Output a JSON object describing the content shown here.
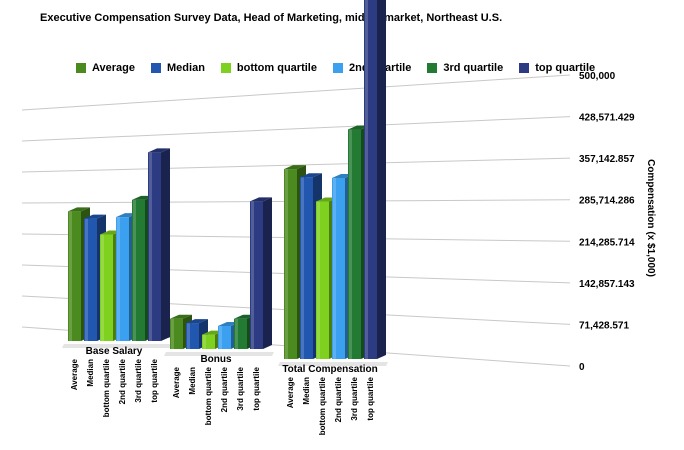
{
  "chart_data": {
    "type": "bar",
    "title": "Executive Compensation Survey Data, Head of Marketing, middle-market, Northeast U.S.",
    "ylabel": "Compensation (x $1,000)",
    "ylim": [
      0,
      500000
    ],
    "y_ticks": [
      "0",
      "71,428.571",
      "142,857.143",
      "214,285.714",
      "285,714.286",
      "357,142.857",
      "428,571.429",
      "500,000"
    ],
    "categories": [
      "Base Salary",
      "Bonus",
      "Total Compensation"
    ],
    "series": [
      {
        "name": "Average",
        "color": "#4a8a1e",
        "values": [
          180000,
          42000,
          235000
        ]
      },
      {
        "name": "Median",
        "color": "#2257b0",
        "values": [
          170000,
          36000,
          225000
        ]
      },
      {
        "name": "bottom quartile",
        "color": "#7fd11f",
        "values": [
          148000,
          20000,
          195000
        ]
      },
      {
        "name": "2nd quartile",
        "color": "#3aa0ef",
        "values": [
          172000,
          32000,
          224000
        ]
      },
      {
        "name": "3rd quartile",
        "color": "#237a32",
        "values": [
          196000,
          42000,
          284000
        ]
      },
      {
        "name": "top quartile",
        "color": "#2c3b82",
        "values": [
          262000,
          205000,
          452000
        ]
      }
    ],
    "grid": true,
    "legend": "top"
  }
}
